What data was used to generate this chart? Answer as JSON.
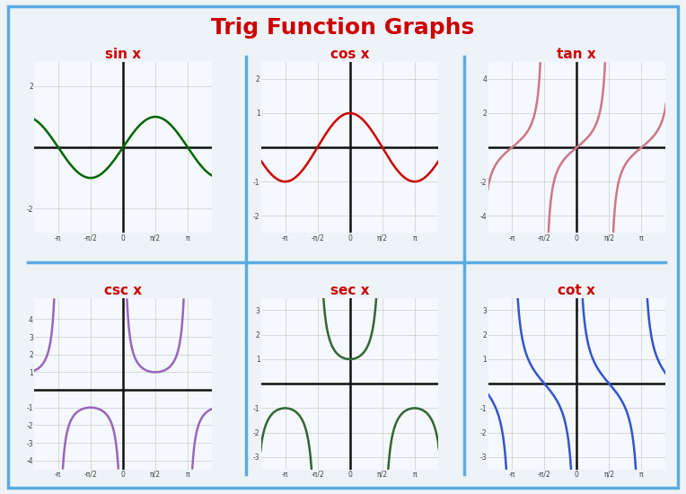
{
  "title": "Trig Function Graphs",
  "title_color": "#cc0000",
  "title_fontsize": 18,
  "title_fontweight": "bold",
  "background_color": "#eef3f8",
  "panel_background": "#f5f8fc",
  "divider_color": "#5aace0",
  "functions": [
    "sin x",
    "cos x",
    "tan x",
    "csc x",
    "sec x",
    "cot x"
  ],
  "label_color": "#cc0000",
  "label_fontsize": 11,
  "colors": {
    "sin x": "#006600",
    "cos x": "#cc0000",
    "tan x": "#cc7788",
    "csc x": "#9966bb",
    "sec x": "#336633",
    "cot x": "#3355cc"
  },
  "ylims": {
    "sin x": [
      -2.8,
      2.8
    ],
    "cos x": [
      -2.5,
      2.5
    ],
    "tan x": [
      -5.0,
      5.0
    ],
    "csc x": [
      -4.5,
      5.2
    ],
    "sec x": [
      -3.5,
      3.5
    ],
    "cot x": [
      -3.5,
      3.5
    ]
  },
  "yticks": {
    "sin x": [
      -2,
      2
    ],
    "cos x": [
      -2,
      -1,
      1,
      2
    ],
    "tan x": [
      -4,
      -2,
      2,
      4
    ],
    "csc x": [
      -4,
      -3,
      -2,
      -1,
      1,
      2,
      3,
      4
    ],
    "sec x": [
      -3,
      -2,
      -1,
      1,
      2,
      3
    ],
    "cot x": [
      -3,
      -2,
      -1,
      1,
      2,
      3
    ]
  },
  "xlim": [
    -4.3,
    4.3
  ],
  "xtick_labels": [
    "-π",
    "-π/2",
    "0",
    "π/2",
    "π"
  ],
  "xtick_vals": [
    -3.14159265,
    -1.57079633,
    0.0,
    1.57079633,
    3.14159265
  ],
  "grid_color": "#cccccc",
  "axis_color": "#111111",
  "linewidth": 1.8
}
